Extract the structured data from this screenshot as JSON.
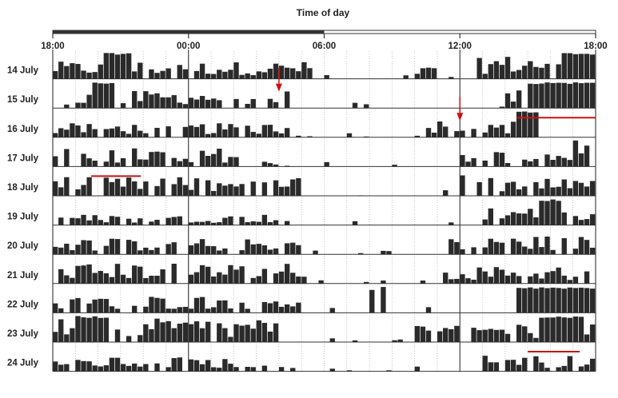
{
  "chart_data": {
    "type": "bar",
    "title": "Time of day",
    "x_ticks": [
      "18:00",
      "00:00",
      "06:00",
      "12:00",
      "18:00"
    ],
    "x_tick_hours": [
      0,
      6,
      12,
      18,
      24
    ],
    "days": [
      "14 July",
      "15 July",
      "16 July",
      "17 July",
      "18 July",
      "19 July",
      "20 July",
      "21 July",
      "22 July",
      "23 July",
      "24 July"
    ],
    "light_period_hours": [
      0,
      12
    ],
    "dark_period_hours": [
      12,
      24
    ],
    "bins_per_hour": 4,
    "activity_blocks": [
      {
        "day": "14 July",
        "start": 0.0,
        "end": 11.5,
        "level": 0.55
      },
      {
        "day": "14 July",
        "start": 2.2,
        "end": 3.3,
        "level": 1.0
      },
      {
        "day": "14 July",
        "start": 15.5,
        "end": 17.0,
        "level": 0.4
      },
      {
        "day": "14 July",
        "start": 18.7,
        "end": 24.0,
        "level": 0.75
      },
      {
        "day": "14 July",
        "start": 22.5,
        "end": 23.8,
        "level": 1.0
      },
      {
        "day": "15 July",
        "start": 0.8,
        "end": 10.5,
        "level": 0.55
      },
      {
        "day": "15 July",
        "start": 1.7,
        "end": 2.7,
        "level": 1.0
      },
      {
        "day": "15 July",
        "start": 20.0,
        "end": 24.0,
        "level": 0.8
      },
      {
        "day": "15 July",
        "start": 21.0,
        "end": 24.0,
        "level": 1.0
      },
      {
        "day": "16 July",
        "start": 0.0,
        "end": 10.5,
        "level": 0.45
      },
      {
        "day": "16 July",
        "start": 16.5,
        "end": 21.0,
        "level": 0.55
      },
      {
        "day": "16 July",
        "start": 20.5,
        "end": 21.3,
        "level": 1.0
      },
      {
        "day": "17 July",
        "start": 0.0,
        "end": 8.2,
        "level": 0.6
      },
      {
        "day": "17 July",
        "start": 17.8,
        "end": 24.0,
        "level": 0.5
      },
      {
        "day": "17 July",
        "start": 23.0,
        "end": 24.0,
        "level": 0.9
      },
      {
        "day": "18 July",
        "start": 0.0,
        "end": 11.0,
        "level": 0.6
      },
      {
        "day": "18 July",
        "start": 18.0,
        "end": 24.0,
        "level": 0.7
      },
      {
        "day": "19 July",
        "start": 0.0,
        "end": 10.5,
        "level": 0.35
      },
      {
        "day": "19 July",
        "start": 19.0,
        "end": 24.0,
        "level": 0.55
      },
      {
        "day": "19 July",
        "start": 21.5,
        "end": 22.5,
        "level": 1.0
      },
      {
        "day": "20 July",
        "start": 0.0,
        "end": 11.0,
        "level": 0.5
      },
      {
        "day": "20 July",
        "start": 17.5,
        "end": 24.0,
        "level": 0.6
      },
      {
        "day": "21 July",
        "start": 0.0,
        "end": 11.5,
        "level": 0.65
      },
      {
        "day": "21 July",
        "start": 17.0,
        "end": 24.0,
        "level": 0.55
      },
      {
        "day": "22 July",
        "start": 0.0,
        "end": 11.0,
        "level": 0.55
      },
      {
        "day": "22 July",
        "start": 14.0,
        "end": 15.0,
        "level": 0.9
      },
      {
        "day": "22 July",
        "start": 20.5,
        "end": 24.0,
        "level": 1.0
      },
      {
        "day": "23 July",
        "start": 0.0,
        "end": 10.0,
        "level": 0.75
      },
      {
        "day": "23 July",
        "start": 1.0,
        "end": 2.5,
        "level": 1.0
      },
      {
        "day": "23 July",
        "start": 16.0,
        "end": 24.0,
        "level": 0.6
      },
      {
        "day": "23 July",
        "start": 21.5,
        "end": 23.3,
        "level": 1.0
      },
      {
        "day": "24 July",
        "start": 0.0,
        "end": 9.5,
        "level": 0.45
      },
      {
        "day": "24 July",
        "start": 18.8,
        "end": 24.0,
        "level": 0.5
      }
    ],
    "markers": [
      {
        "type": "arrow",
        "day": "14 July",
        "hour": 10.0,
        "color": "#cc1111"
      },
      {
        "type": "arrow",
        "day": "15 July",
        "hour": 18.0,
        "color": "#cc1111"
      }
    ],
    "red_lines": [
      {
        "day": "16 July",
        "start": 20.5,
        "end": 24.0,
        "color": "#cc1111"
      },
      {
        "day": "18 July",
        "start": 1.7,
        "end": 3.9,
        "color": "#cc1111"
      },
      {
        "day": "24 July",
        "start": 21.0,
        "end": 23.3,
        "color": "#cc1111"
      }
    ],
    "grid": true,
    "legend": "none"
  }
}
